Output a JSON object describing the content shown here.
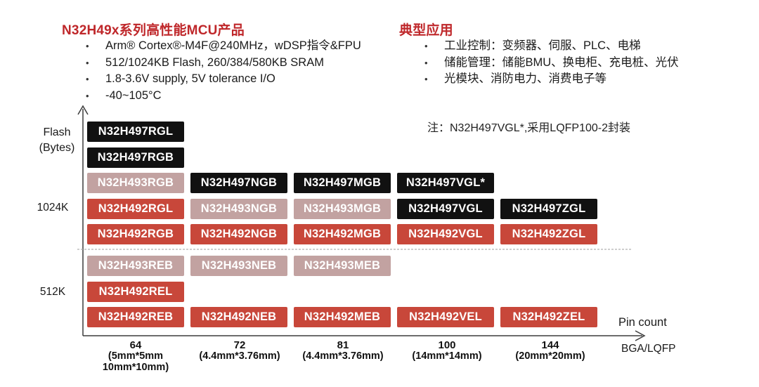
{
  "colors": {
    "accent_red": "#bf272a",
    "chip_black": "#111111",
    "chip_red": "#c8473a",
    "chip_pink": "#c2a2a1",
    "axis_gray": "#3c3c3c",
    "dashed_gray": "#b0b0b0"
  },
  "header_left": {
    "title": "N32H49x系列高性能MCU产品",
    "bullet_glyph": "•",
    "bullets": [
      "Arm® Cortex®-M4F@240MHz，wDSP指令&FPU",
      "512/1024KB Flash, 260/384/580KB SRAM",
      "1.8-3.6V supply, 5V tolerance I/O",
      "-40~105°C"
    ]
  },
  "header_right": {
    "title": "典型应用",
    "bullet_glyph": "•",
    "bullets": [
      "工业控制：变频器、伺服、PLC、电梯",
      "储能管理：储能BMU、换电柜、充电桩、光伏",
      "光模块、消防电力、消费电子等"
    ]
  },
  "note": "注：N32H497VGL*,采用LQFP100-2封装",
  "axes": {
    "y_label_line1": "Flash",
    "y_label_line2": "(Bytes)",
    "y_tick_1024k": "1024K",
    "y_tick_512k": "512K",
    "x_label": "Pin count",
    "x_sublabel": "BGA/LQFP",
    "x_ticks": [
      {
        "pin": "64",
        "size1": "(5mm*5mm",
        "size2": "10mm*10mm)"
      },
      {
        "pin": "72",
        "size1": "(4.4mm*3.76mm)",
        "size2": ""
      },
      {
        "pin": "81",
        "size1": "(4.4mm*3.76mm)",
        "size2": ""
      },
      {
        "pin": "100",
        "size1": "(14mm*14mm)",
        "size2": ""
      },
      {
        "pin": "144",
        "size1": "(20mm*20mm)",
        "size2": ""
      }
    ]
  },
  "grid": {
    "upper_section_flash": "1024K",
    "lower_section_flash": "512K",
    "upper_chips": [
      {
        "label": "N32H497RGL",
        "variant": "black",
        "row": 1,
        "col": 1
      },
      {
        "label": "N32H497RGB",
        "variant": "black",
        "row": 2,
        "col": 1
      },
      {
        "label": "N32H493RGB",
        "variant": "pink",
        "row": 3,
        "col": 1
      },
      {
        "label": "N32H497NGB",
        "variant": "black",
        "row": 3,
        "col": 2
      },
      {
        "label": "N32H497MGB",
        "variant": "black",
        "row": 3,
        "col": 3
      },
      {
        "label": "N32H497VGL*",
        "variant": "black",
        "row": 3,
        "col": 4
      },
      {
        "label": "N32H492RGL",
        "variant": "red",
        "row": 4,
        "col": 1
      },
      {
        "label": "N32H493NGB",
        "variant": "pink",
        "row": 4,
        "col": 2
      },
      {
        "label": "N32H493MGB",
        "variant": "pink",
        "row": 4,
        "col": 3
      },
      {
        "label": "N32H497VGL",
        "variant": "black",
        "row": 4,
        "col": 4
      },
      {
        "label": "N32H497ZGL",
        "variant": "black",
        "row": 4,
        "col": 5
      },
      {
        "label": "N32H492RGB",
        "variant": "red",
        "row": 5,
        "col": 1
      },
      {
        "label": "N32H492NGB",
        "variant": "red",
        "row": 5,
        "col": 2
      },
      {
        "label": "N32H492MGB",
        "variant": "red",
        "row": 5,
        "col": 3
      },
      {
        "label": "N32H492VGL",
        "variant": "red",
        "row": 5,
        "col": 4
      },
      {
        "label": "N32H492ZGL",
        "variant": "red",
        "row": 5,
        "col": 5
      }
    ],
    "lower_chips": [
      {
        "label": "N32H493REB",
        "variant": "pink",
        "row": 1,
        "col": 1
      },
      {
        "label": "N32H493NEB",
        "variant": "pink",
        "row": 1,
        "col": 2
      },
      {
        "label": "N32H493MEB",
        "variant": "pink",
        "row": 1,
        "col": 3
      },
      {
        "label": "N32H492REL",
        "variant": "red",
        "row": 2,
        "col": 1
      },
      {
        "label": "N32H492REB",
        "variant": "red",
        "row": 3,
        "col": 1
      },
      {
        "label": "N32H492NEB",
        "variant": "red",
        "row": 3,
        "col": 2
      },
      {
        "label": "N32H492MEB",
        "variant": "red",
        "row": 3,
        "col": 3
      },
      {
        "label": "N32H492VEL",
        "variant": "red",
        "row": 3,
        "col": 4
      },
      {
        "label": "N32H492ZEL",
        "variant": "red",
        "row": 3,
        "col": 5
      }
    ]
  }
}
